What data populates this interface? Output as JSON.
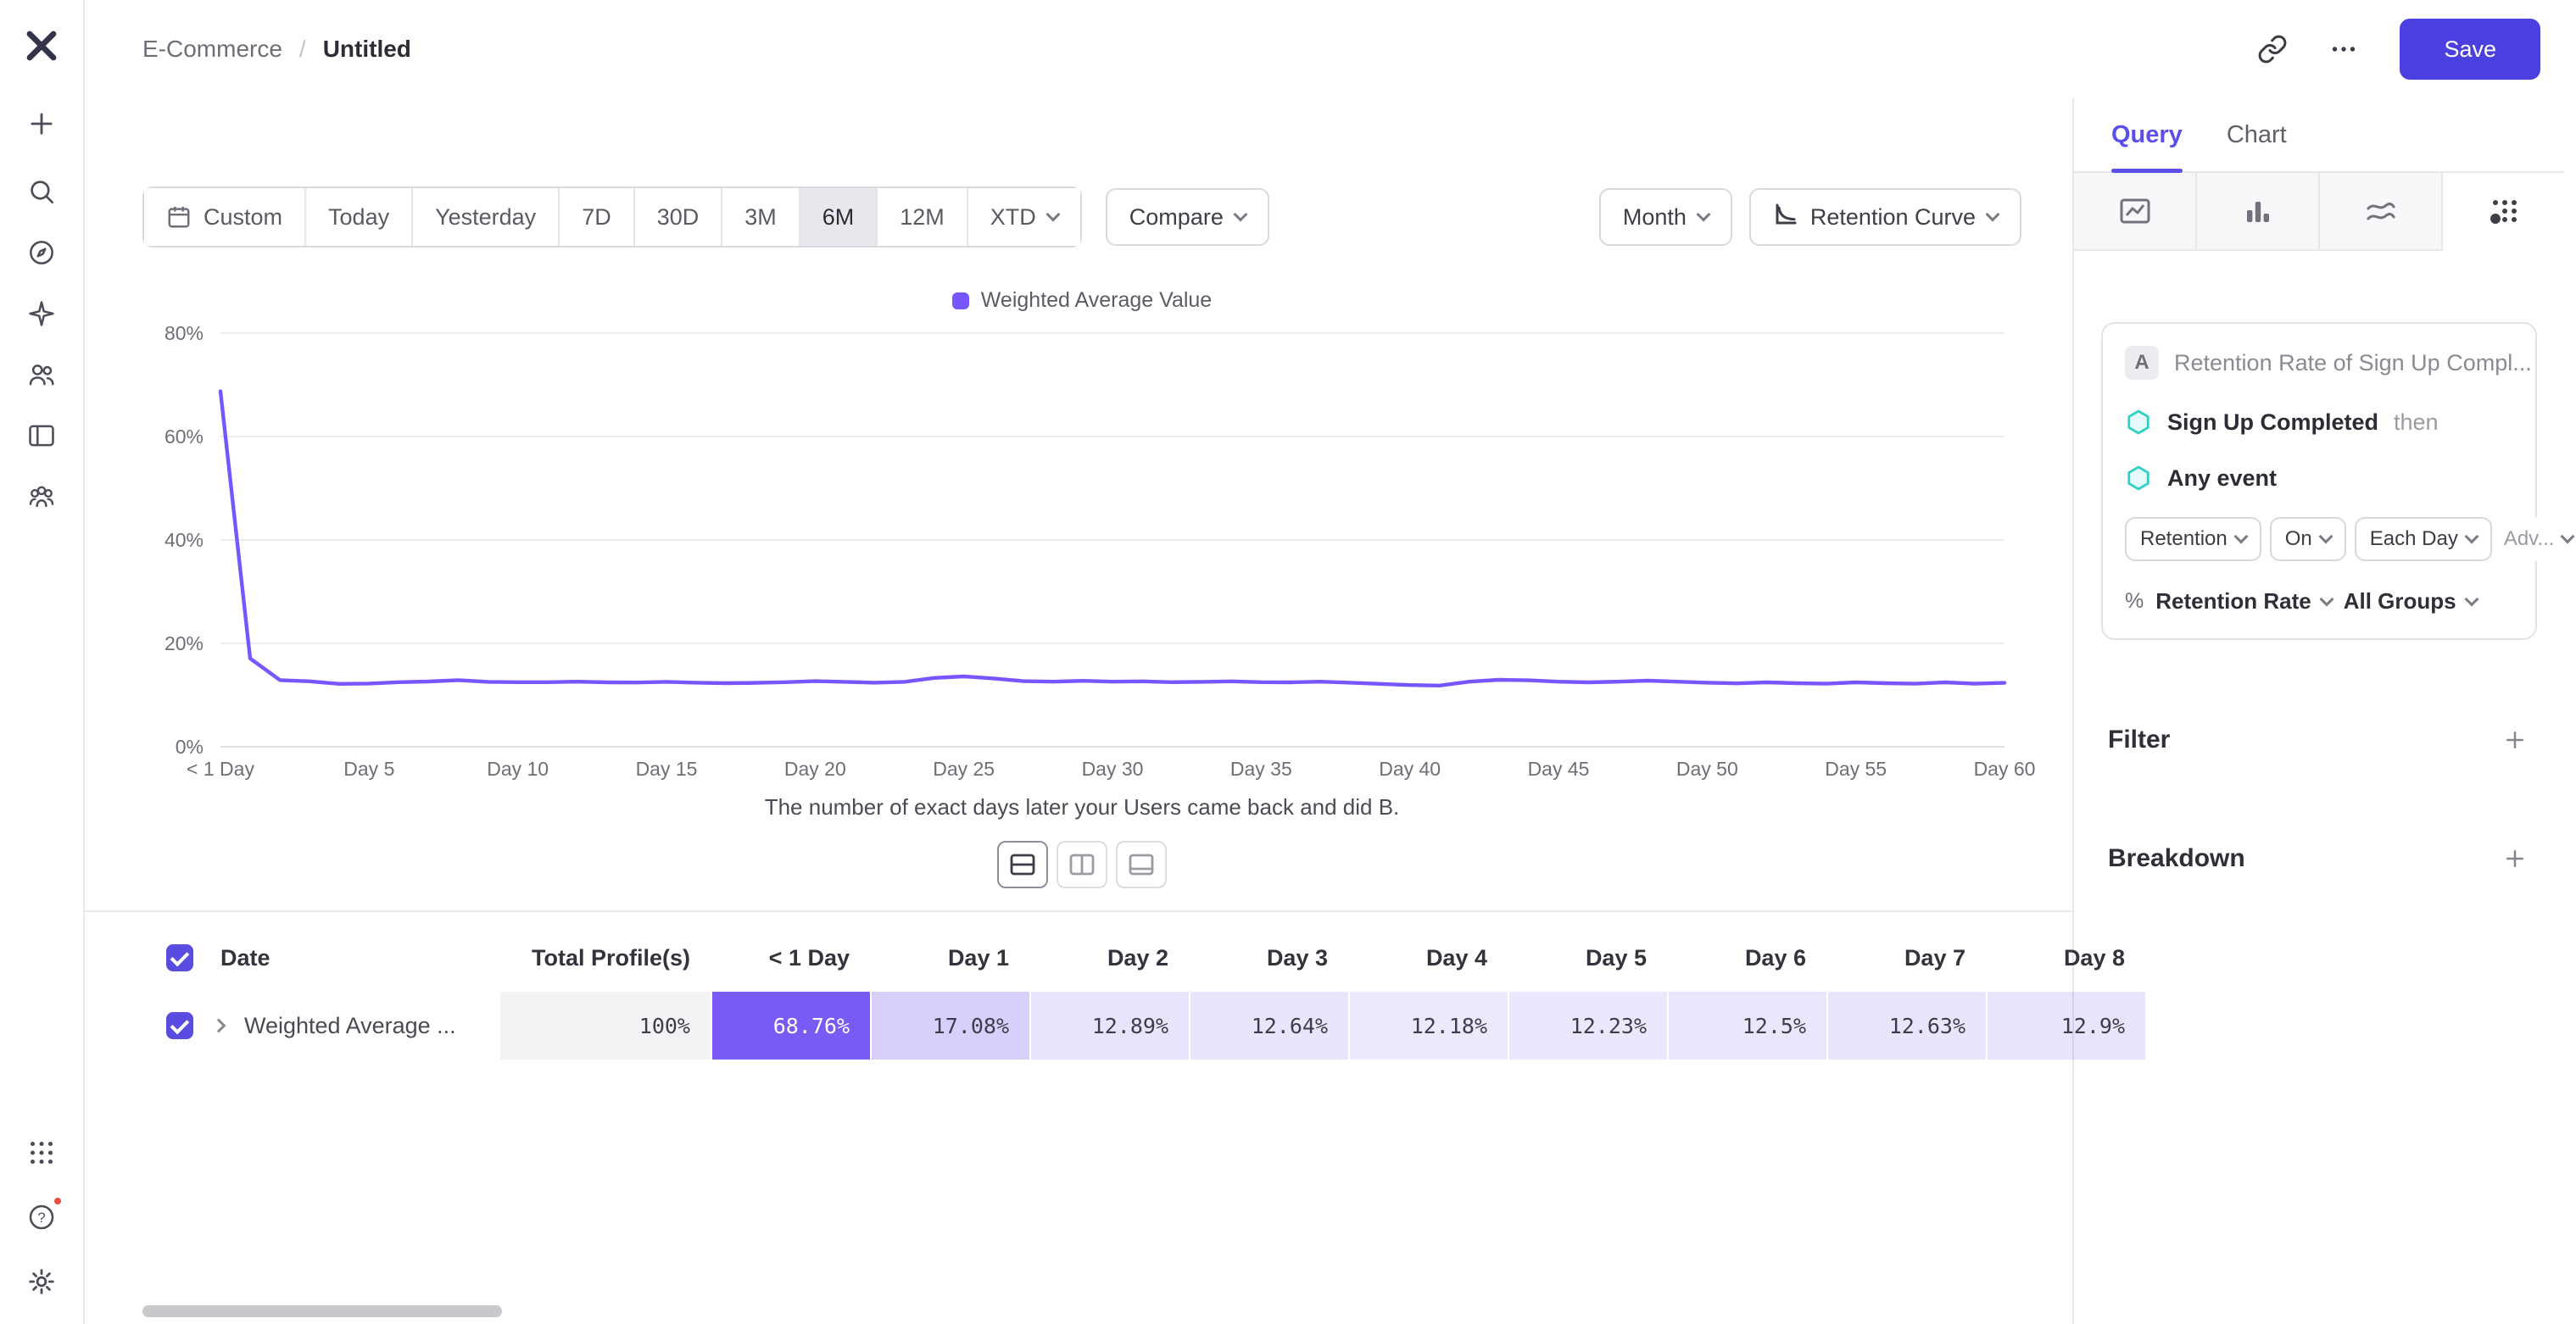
{
  "colors": {
    "accent_purple": "#7856ff",
    "save_button": "#4b3fe0",
    "active_tab": "#5b4fe9",
    "cell_highlight": "#7a5af5",
    "event_hexagon": "#2fd0c4"
  },
  "topbar": {
    "breadcrumb_parent": "E-Commerce",
    "breadcrumb_sep": "/",
    "breadcrumb_current": "Untitled",
    "save_label": "Save"
  },
  "sidebar": {
    "icons": [
      "mixpanel-logo",
      "plus",
      "search",
      "explore-compass",
      "ai-sparkle",
      "users",
      "boards",
      "cohorts",
      "apps-grid",
      "help",
      "settings-gear"
    ],
    "help_has_notification": true
  },
  "toolbar": {
    "date_ranges": [
      "Custom",
      "Today",
      "Yesterday",
      "7D",
      "30D",
      "3M",
      "6M",
      "12M",
      "XTD"
    ],
    "active_range": "6M",
    "compare_label": "Compare",
    "granularity_label": "Month",
    "chart_type_label": "Retention Curve"
  },
  "chart_data": {
    "type": "line",
    "legend": [
      "Weighted Average Value"
    ],
    "series_color": "#7856ff",
    "x_unit": "day",
    "x_range": [
      0,
      60
    ],
    "ylim": [
      0,
      80
    ],
    "grid": true,
    "legend_position": "top-center",
    "y_tick_values": [
      0,
      20,
      40,
      60,
      80
    ],
    "y_tick_labels": [
      "0%",
      "20%",
      "40%",
      "60%",
      "80%"
    ],
    "x_tick_values": [
      0,
      5,
      10,
      15,
      20,
      25,
      30,
      35,
      40,
      45,
      50,
      55,
      60
    ],
    "x_tick_labels": [
      "< 1 Day",
      "Day 5",
      "Day 10",
      "Day 15",
      "Day 20",
      "Day 25",
      "Day 30",
      "Day 35",
      "Day 40",
      "Day 45",
      "Day 50",
      "Day 55",
      "Day 60"
    ],
    "values": [
      68.76,
      17.08,
      12.89,
      12.64,
      12.18,
      12.23,
      12.5,
      12.63,
      12.9,
      12.55,
      12.48,
      12.5,
      12.6,
      12.45,
      12.42,
      12.55,
      12.4,
      12.3,
      12.35,
      12.5,
      12.7,
      12.55,
      12.4,
      12.55,
      13.3,
      13.6,
      13.2,
      12.7,
      12.6,
      12.75,
      12.6,
      12.65,
      12.5,
      12.55,
      12.65,
      12.5,
      12.45,
      12.6,
      12.4,
      12.15,
      11.95,
      11.85,
      12.6,
      12.95,
      12.85,
      12.6,
      12.45,
      12.6,
      12.8,
      12.6,
      12.4,
      12.25,
      12.45,
      12.3,
      12.2,
      12.45,
      12.3,
      12.2,
      12.45,
      12.2,
      12.35
    ],
    "caption": "The number of exact days later your Users came back and did B."
  },
  "layout_toggles": [
    "chart-and-table",
    "side-panel",
    "bottom-panel"
  ],
  "table": {
    "columns": [
      "Date",
      "Total Profile(s)",
      "< 1 Day",
      "Day 1",
      "Day 2",
      "Day 3",
      "Day 4",
      "Day 5",
      "Day 6",
      "Day 7",
      "Day 8"
    ],
    "rows": [
      {
        "label": "Weighted Average ...",
        "total": "100%",
        "cells": [
          "68.76%",
          "17.08%",
          "12.89%",
          "12.64%",
          "12.18%",
          "12.23%",
          "12.5%",
          "12.63%",
          "12.9%"
        ]
      }
    ]
  },
  "query_panel": {
    "tabs": [
      {
        "label": "Query",
        "active": true
      },
      {
        "label": "Chart",
        "active": false
      }
    ],
    "chart_type_icons": [
      "line-chart",
      "bar-chart",
      "stacked-chart",
      "retention-grid"
    ],
    "active_chart_type": "retention-grid",
    "card": {
      "badge": "A",
      "title": "Retention Rate of Sign Up Compl...",
      "steps": [
        {
          "label": "Sign Up Completed",
          "suffix": "then"
        },
        {
          "label": "Any event",
          "suffix": ""
        }
      ],
      "pills": [
        "Retention",
        "On",
        "Each Day"
      ],
      "advanced_label": "Adv...",
      "measure_prefix": "%",
      "measure_label": "Retention Rate",
      "groups_label": "All Groups"
    },
    "sections": [
      {
        "label": "Filter"
      },
      {
        "label": "Breakdown"
      }
    ]
  }
}
